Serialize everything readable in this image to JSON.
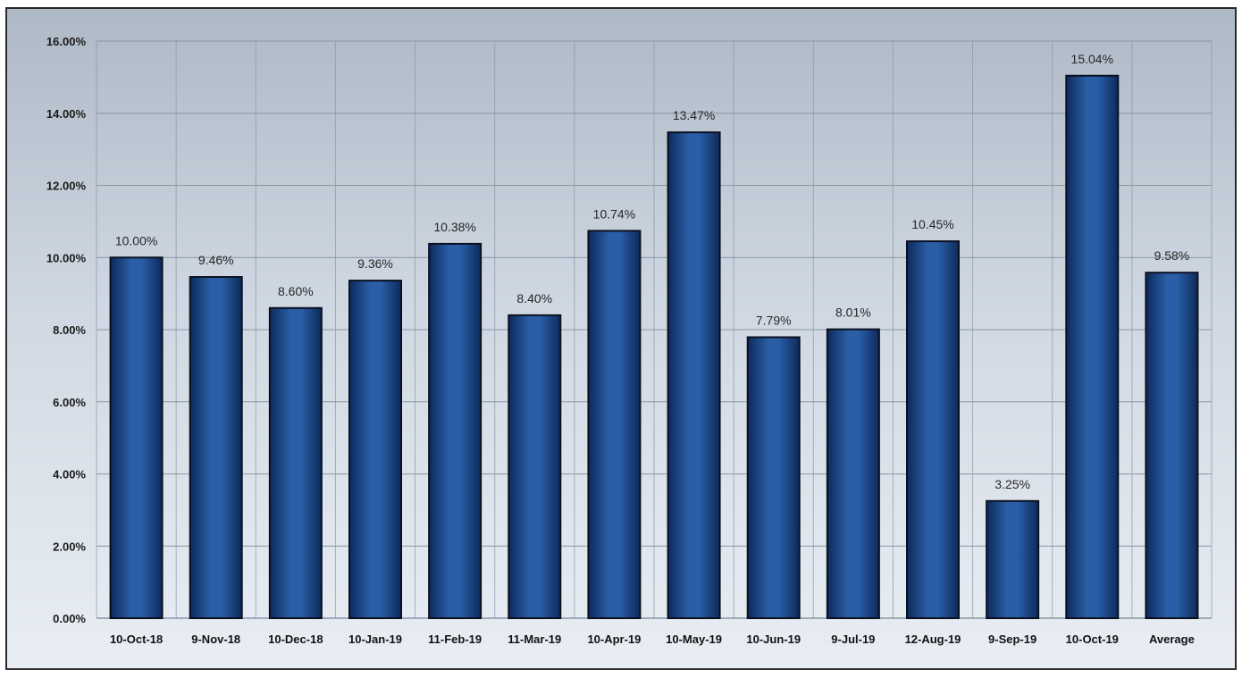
{
  "chart_data": {
    "type": "bar",
    "title": "",
    "xlabel": "",
    "ylabel": "",
    "categories": [
      "10-Oct-18",
      "9-Nov-18",
      "10-Dec-18",
      "10-Jan-19",
      "11-Feb-19",
      "11-Mar-19",
      "10-Apr-19",
      "10-May-19",
      "10-Jun-19",
      "9-Jul-19",
      "12-Aug-19",
      "9-Sep-19",
      "10-Oct-19",
      "Average"
    ],
    "values": [
      10.0,
      9.46,
      8.6,
      9.36,
      10.38,
      8.4,
      10.74,
      13.47,
      7.79,
      8.01,
      10.45,
      3.25,
      15.04,
      9.58
    ],
    "data_labels": [
      "10.00%",
      "9.46%",
      "8.60%",
      "9.36%",
      "10.38%",
      "8.40%",
      "10.74%",
      "13.47%",
      "7.79%",
      "8.01%",
      "10.45%",
      "3.25%",
      "15.04%",
      "9.58%"
    ],
    "y_ticks": [
      "0.00%",
      "2.00%",
      "4.00%",
      "6.00%",
      "8.00%",
      "10.00%",
      "12.00%",
      "14.00%",
      "16.00%"
    ],
    "y_tick_values": [
      0,
      2,
      4,
      6,
      8,
      10,
      12,
      14,
      16
    ],
    "ylim": [
      0,
      16
    ],
    "grid": true,
    "legend": "none",
    "colors": {
      "bar_fill": "#1f4e8c",
      "bar_edge": "#0b1020",
      "gridline": "#8a96a4"
    }
  }
}
